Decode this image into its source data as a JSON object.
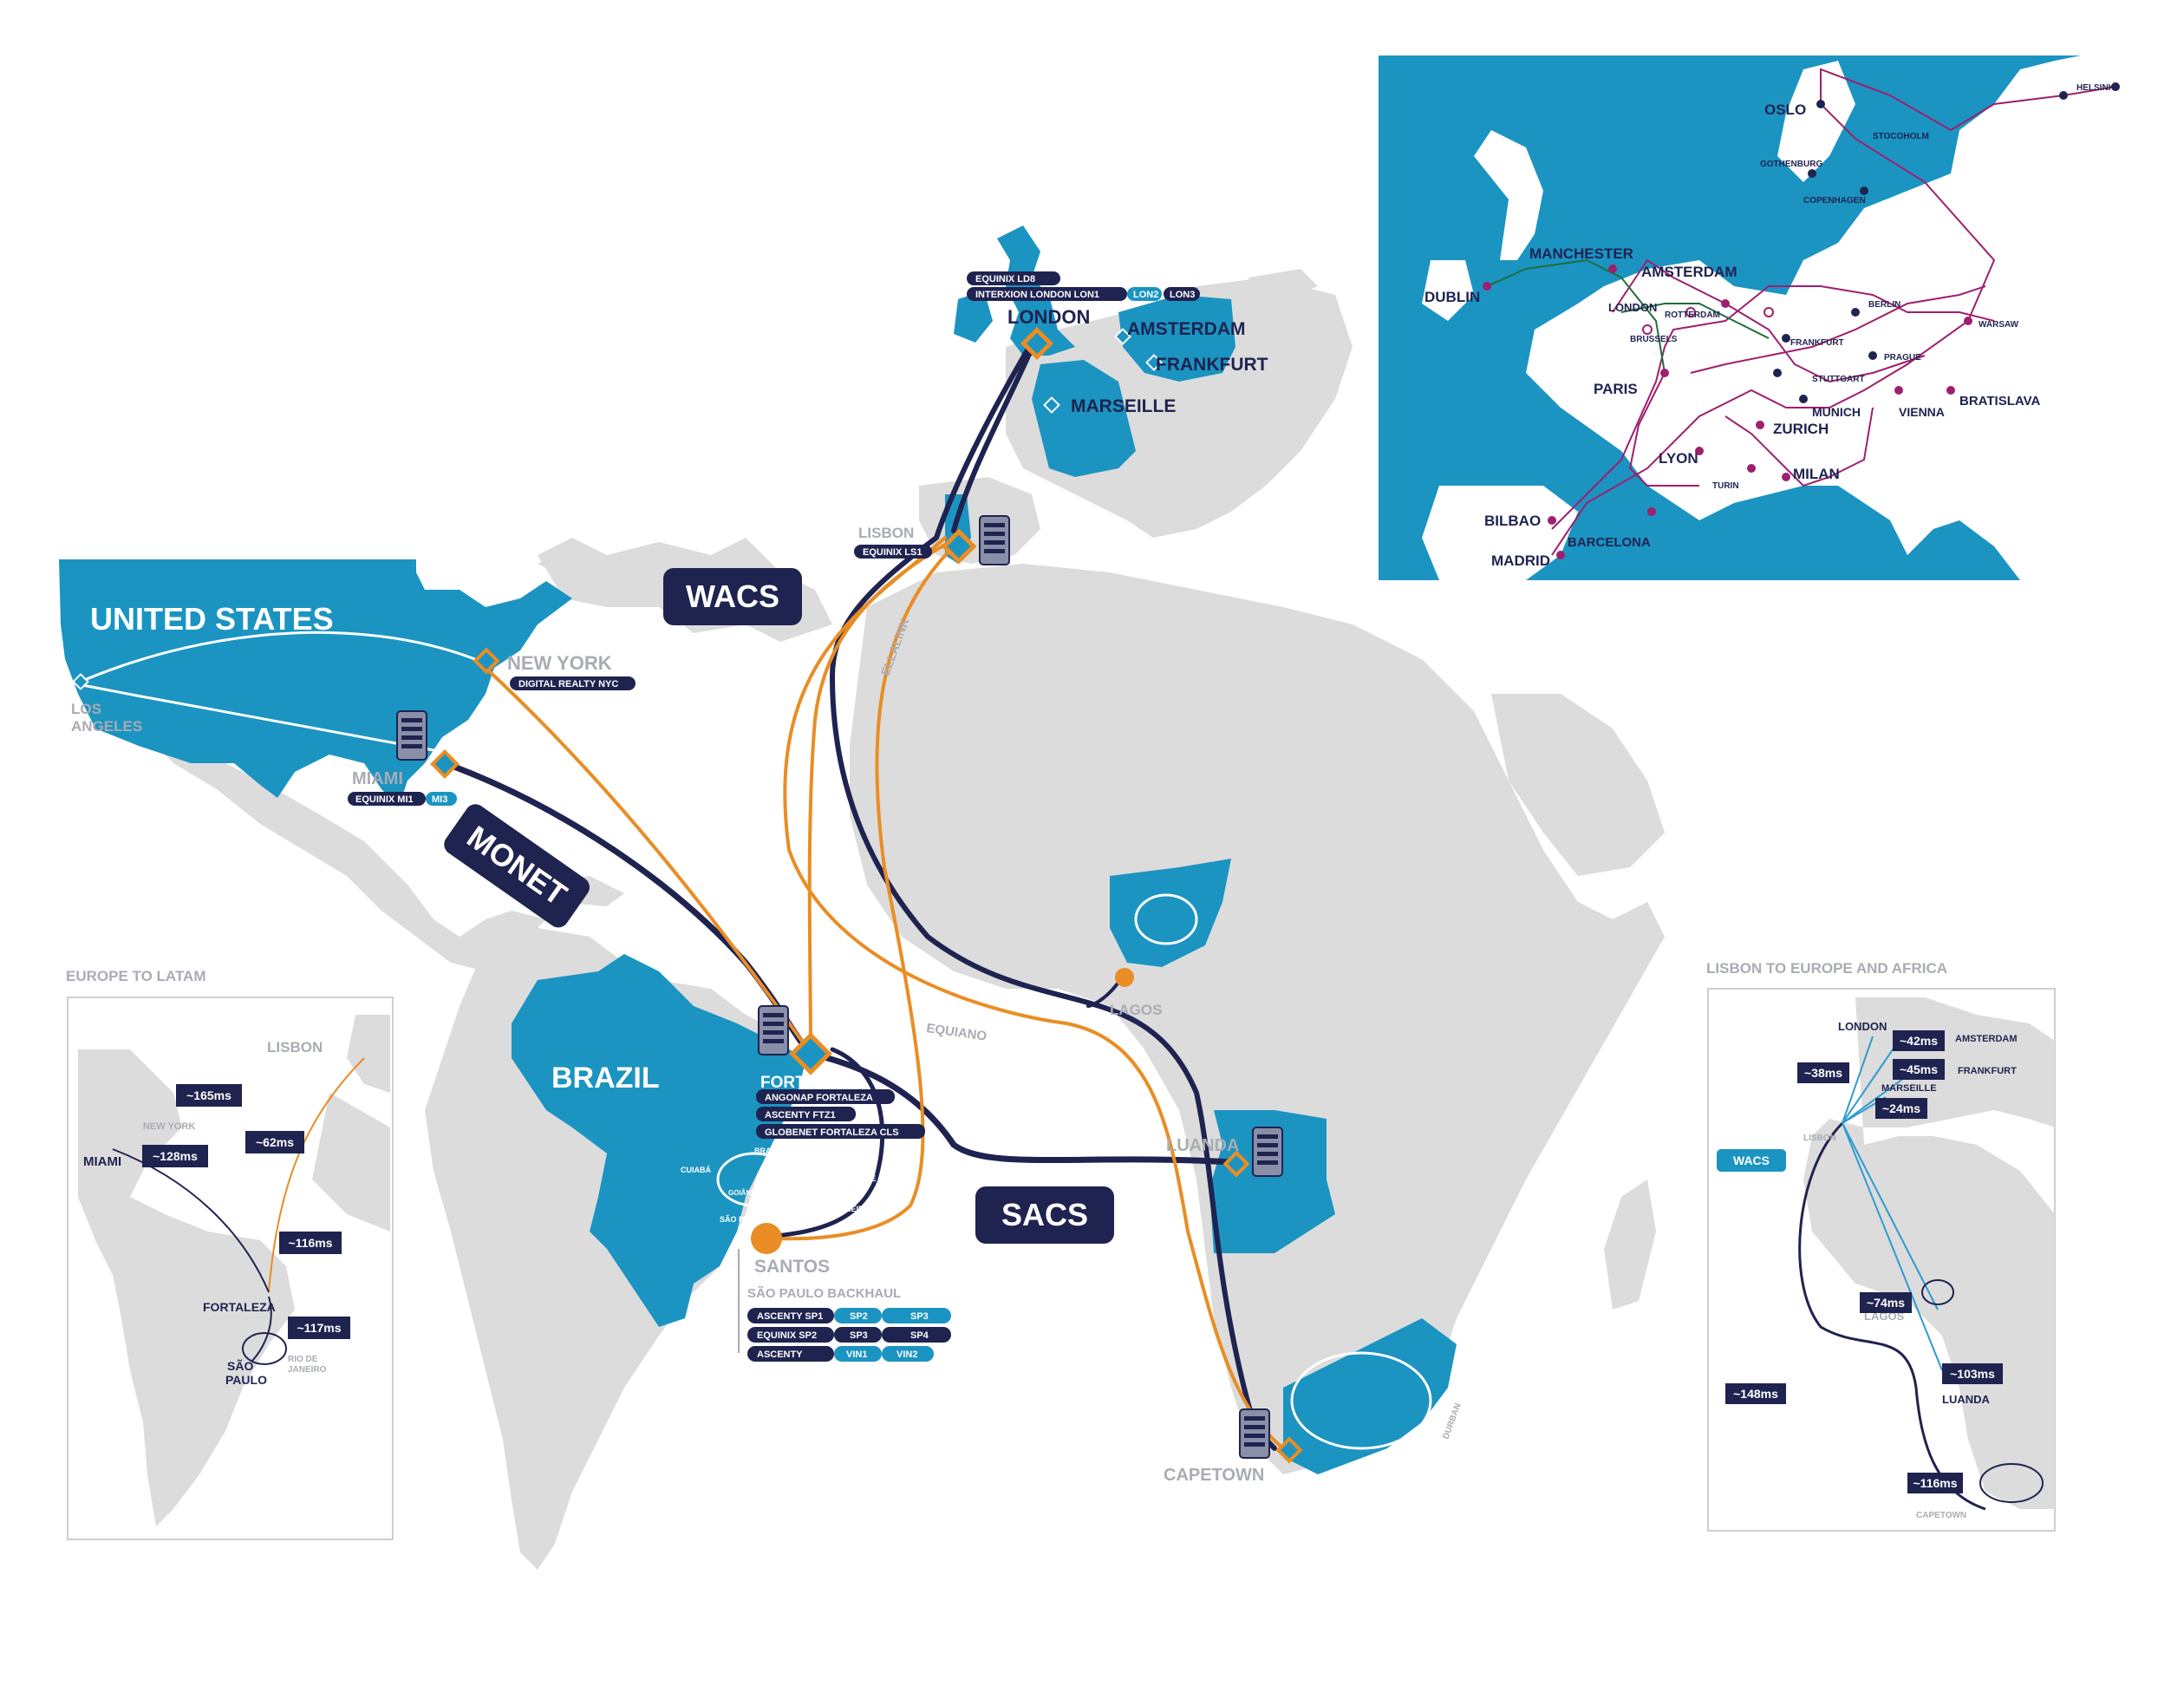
{
  "colors": {
    "land": "#dcdcdc",
    "highlight": "#1b94c2",
    "navy": "#1f2350",
    "orange": "#e98d24",
    "magenta": "#9e1f6e",
    "green": "#1e6e3a",
    "light_blue_line": "#2e9bd0"
  },
  "cables": {
    "wacs": "WACS",
    "monet": "MONET",
    "sacs": "SACS",
    "ellalink": "ELLALINK",
    "equiano": "EQUIANO"
  },
  "regions": {
    "united_states": "UNITED STATES",
    "brazil": "BRAZIL"
  },
  "cities": {
    "london": "LONDON",
    "amsterdam": "AMSTERDAM",
    "frankfurt": "FRANKFURT",
    "marseille": "MARSEILLE",
    "lisbon": "LISBON",
    "new_york": "NEW YORK",
    "los_angeles_1": "LOS",
    "los_angeles_2": "ANGELES",
    "miami": "MIAMI",
    "fortaleza": "FORTALE",
    "lagos": "LAGOS",
    "luanda": "LUANDA",
    "capetown": "CAPETOWN",
    "santos": "SANTOS",
    "durban": "DURBAN"
  },
  "brazil_inner": {
    "brasilia": "BRASÍLIA",
    "cuiaba": "CUIABÁ",
    "belo_horizonte": "BELO HORIZONTE",
    "goiania": "GOIÂNIA",
    "rio": "RIO DE JANEIRO",
    "sao_paulo": "SÃO PAULO"
  },
  "datacenters": {
    "london_1": "EQUINIX LD8",
    "london_2": "INTERXION LONDON LON1",
    "london_3": "LON2",
    "london_4": "LON3",
    "lisbon_1": "EQUINIX LS1",
    "new_york_1": "DIGITAL REALTY NYC",
    "miami_1": "EQUINIX MI1",
    "miami_2": "MI3",
    "fortaleza_1": "ANGONAP FORTALEZA",
    "fortaleza_2": "ASCENTY FTZ1",
    "fortaleza_3": "GLOBENET FORTALEZA CLS"
  },
  "backhaul": {
    "title": "SÃO PAULO BACKHAUL",
    "rows": [
      [
        "ASCENTY SP1",
        "SP2",
        "SP3"
      ],
      [
        "EQUINIX SP2",
        "SP3",
        "SP4"
      ],
      [
        "ASCENTY",
        "VIN1",
        "VIN2"
      ]
    ]
  },
  "europe_inset": {
    "cities": {
      "oslo": "OSLO",
      "helsinki": "HELSINKI",
      "stocoholm": "STOCOHOLM",
      "gothenburg": "GOTHENBURG",
      "copenhagen": "COPENHAGEN",
      "manchester": "MANCHESTER",
      "dublin": "DUBLIN",
      "amsterdam": "AMSTERDAM",
      "london": "LONDON",
      "rotterdam": "ROTTERDAM",
      "brussels": "BRUSSELS",
      "berlin": "BERLIN",
      "warsaw": "WARSAW",
      "frankfurt": "FRANKFURT",
      "prague": "PRAGUE",
      "paris": "PARIS",
      "stuttgart": "STUTTGART",
      "munich": "MUNICH",
      "vienna": "VIENNA",
      "bratislava": "BRATISLAVA",
      "zurich": "ZURICH",
      "lyon": "LYON",
      "turin": "TURIN",
      "milan": "MILAN",
      "bilbao": "BILBAO",
      "barcelona": "BARCELONA",
      "madrid": "MADRID"
    }
  },
  "latam_inset": {
    "title": "EUROPE TO LATAM",
    "lisbon": "LISBON",
    "new_york": "NEW YORK",
    "miami": "MIAMI",
    "fortaleza": "FORTALEZA",
    "sao_paulo_1": "SÃO",
    "sao_paulo_2": "PAULO",
    "rio_1": "RIO DE",
    "rio_2": "JANEIRO",
    "latencies": {
      "l165": "~165ms",
      "l62": "~62ms",
      "l128": "~128ms",
      "l116": "~116ms",
      "l117": "~117ms"
    }
  },
  "africa_inset": {
    "title": "LISBON TO EUROPE AND AFRICA",
    "london": "LONDON",
    "amsterdam": "AMSTERDAM",
    "frankfurt": "FRANKFURT",
    "marseille": "MARSEILLE",
    "lisbon": "LISBON",
    "wacs": "WACS",
    "lagos": "LAGOS",
    "luanda": "LUANDA",
    "capetown": "CAPETOWN",
    "latencies": {
      "l42": "~42ms",
      "l38": "~38ms",
      "l45": "~45ms",
      "l24": "~24ms",
      "l74": "~74ms",
      "l103": "~103ms",
      "l148": "~148ms",
      "l116": "~116ms"
    }
  }
}
